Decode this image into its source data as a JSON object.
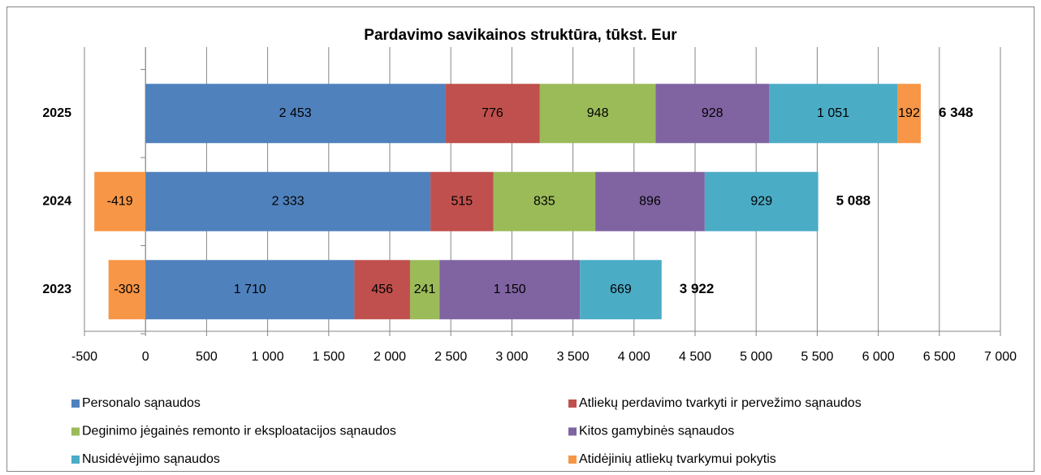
{
  "chart_data": {
    "type": "stacked_barh",
    "title": "Pardavimo savikainos struktūra, tūkst. Eur",
    "categories": [
      "2023",
      "2024",
      "2025"
    ],
    "series": [
      {
        "name": "Personalo sąnaudos",
        "color": "#4f81bd",
        "values": [
          1710,
          2333,
          2453
        ],
        "value_labels": [
          "1 710",
          "2 333",
          "2 453"
        ]
      },
      {
        "name": "Atliekų perdavimo tvarkyti ir pervežimo sąnaudos",
        "color": "#c0504d",
        "values": [
          456,
          515,
          776
        ]
      },
      {
        "name": "Deginimo jėgainės remonto ir eksploatacijos sąnaudos",
        "color": "#9bbb59",
        "values": [
          241,
          835,
          948
        ]
      },
      {
        "name": "Kitos gamybinės sąnaudos",
        "color": "#8064a2",
        "values": [
          1150,
          896,
          928
        ],
        "value_labels": [
          "1 150",
          "896",
          "928"
        ]
      },
      {
        "name": "Nusidėvėjimo sąnaudos",
        "color": "#4bacc6",
        "values": [
          669,
          929,
          1051
        ],
        "value_labels": [
          "669",
          "929",
          "1 051"
        ]
      },
      {
        "name": "Atidėjinių atliekų tvarkymui pokytis",
        "color": "#f79646",
        "values": [
          -303,
          -419,
          192
        ]
      }
    ],
    "totals": [
      3922,
      5088,
      6348
    ],
    "total_labels": [
      "3 922",
      "5 088",
      "6 348"
    ],
    "xlim": [
      -500,
      7000
    ],
    "xticks": [
      -500,
      0,
      500,
      {
        "value": 1000,
        "label": "1 000"
      },
      {
        "value": 1500,
        "label": "1 500"
      },
      {
        "value": 2000,
        "label": "2 000"
      },
      {
        "value": 2500,
        "label": "2 500"
      },
      {
        "value": 3000,
        "label": "3 000"
      },
      {
        "value": 3500,
        "label": "3 500"
      },
      {
        "value": 4000,
        "label": "4 000"
      },
      {
        "value": 4500,
        "label": "4 500"
      },
      {
        "value": 5000,
        "label": "5 000"
      },
      {
        "value": 5500,
        "label": "5 500"
      },
      {
        "value": 6000,
        "label": "6 000"
      },
      {
        "value": 6500,
        "label": "6 500"
      },
      {
        "value": 7000,
        "label": "7 000"
      }
    ],
    "grid": true,
    "legend": "bottom"
  }
}
